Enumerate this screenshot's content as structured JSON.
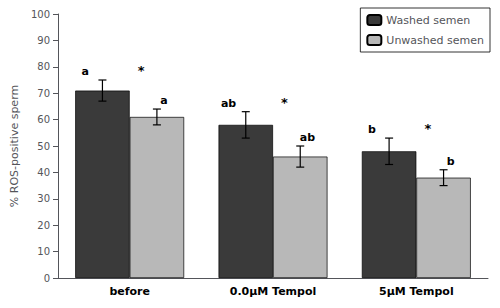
{
  "chart_data": {
    "type": "bar",
    "ylabel": "% ROS-positive sperm",
    "categories": [
      "before",
      "0.0μM Tempol",
      "5μM Tempol"
    ],
    "series": [
      {
        "name": "Washed semen",
        "color": "#3a3a3a",
        "values": [
          71,
          58,
          48
        ],
        "errors": [
          4,
          5,
          5
        ],
        "labels": [
          "a",
          "ab",
          "b"
        ],
        "annotations": [
          "*",
          "*",
          "*"
        ]
      },
      {
        "name": "Unwashed semen",
        "color": "#b8b8b8",
        "values": [
          61,
          46,
          38
        ],
        "errors": [
          3,
          4,
          3
        ],
        "labels": [
          "a",
          "ab",
          "b"
        ]
      }
    ],
    "ylim": [
      0,
      100
    ],
    "yticks": [
      0,
      10,
      20,
      30,
      40,
      50,
      60,
      70,
      80,
      90,
      100
    ],
    "grid": false,
    "legend": "upper right"
  }
}
